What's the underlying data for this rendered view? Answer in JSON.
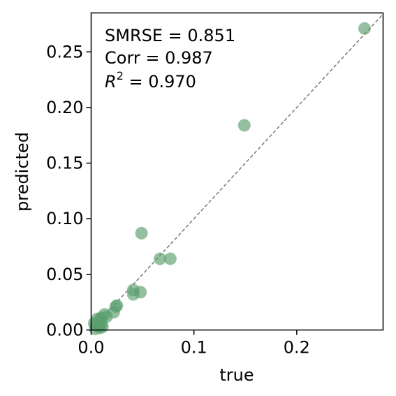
{
  "chart_data": {
    "type": "scatter",
    "xlabel": "true",
    "ylabel": "predicted",
    "xlim": [
      0.0,
      0.284
    ],
    "ylim": [
      0.0,
      0.285
    ],
    "x_ticks": [
      0.0,
      0.1,
      0.2
    ],
    "x_tick_labels": [
      "0.0",
      "0.1",
      "0.2"
    ],
    "y_ticks": [
      0.0,
      0.05,
      0.1,
      0.15,
      0.2,
      0.25
    ],
    "y_tick_labels": [
      "0.00",
      "0.05",
      "0.10",
      "0.15",
      "0.20",
      "0.25"
    ],
    "grid": false,
    "reference_line": {
      "type": "identity",
      "style": "dashed",
      "color": "#7a7a7a"
    },
    "marker_color": "#5a9e6f",
    "annotations": {
      "line1": "SMRSE = 0.851",
      "line2": "Corr = 0.987",
      "line3_prefix": "R",
      "line3_superscript": "2",
      "line3_rest": " = 0.970"
    },
    "points": [
      {
        "x": 0.266,
        "y": 0.271
      },
      {
        "x": 0.149,
        "y": 0.184
      },
      {
        "x": 0.049,
        "y": 0.087
      },
      {
        "x": 0.067,
        "y": 0.064
      },
      {
        "x": 0.077,
        "y": 0.064
      },
      {
        "x": 0.041,
        "y": 0.036
      },
      {
        "x": 0.041,
        "y": 0.032
      },
      {
        "x": 0.048,
        "y": 0.034
      },
      {
        "x": 0.025,
        "y": 0.022
      },
      {
        "x": 0.024,
        "y": 0.021
      },
      {
        "x": 0.022,
        "y": 0.016
      },
      {
        "x": 0.013,
        "y": 0.014
      },
      {
        "x": 0.015,
        "y": 0.012
      },
      {
        "x": 0.01,
        "y": 0.011
      },
      {
        "x": 0.008,
        "y": 0.009
      },
      {
        "x": 0.006,
        "y": 0.01
      },
      {
        "x": 0.01,
        "y": 0.006
      },
      {
        "x": 0.005,
        "y": 0.004
      },
      {
        "x": 0.007,
        "y": 0.003
      },
      {
        "x": 0.003,
        "y": 0.006
      },
      {
        "x": 0.009,
        "y": 0.002
      },
      {
        "x": 0.004,
        "y": 0.001
      },
      {
        "x": 0.011,
        "y": 0.003
      }
    ]
  }
}
